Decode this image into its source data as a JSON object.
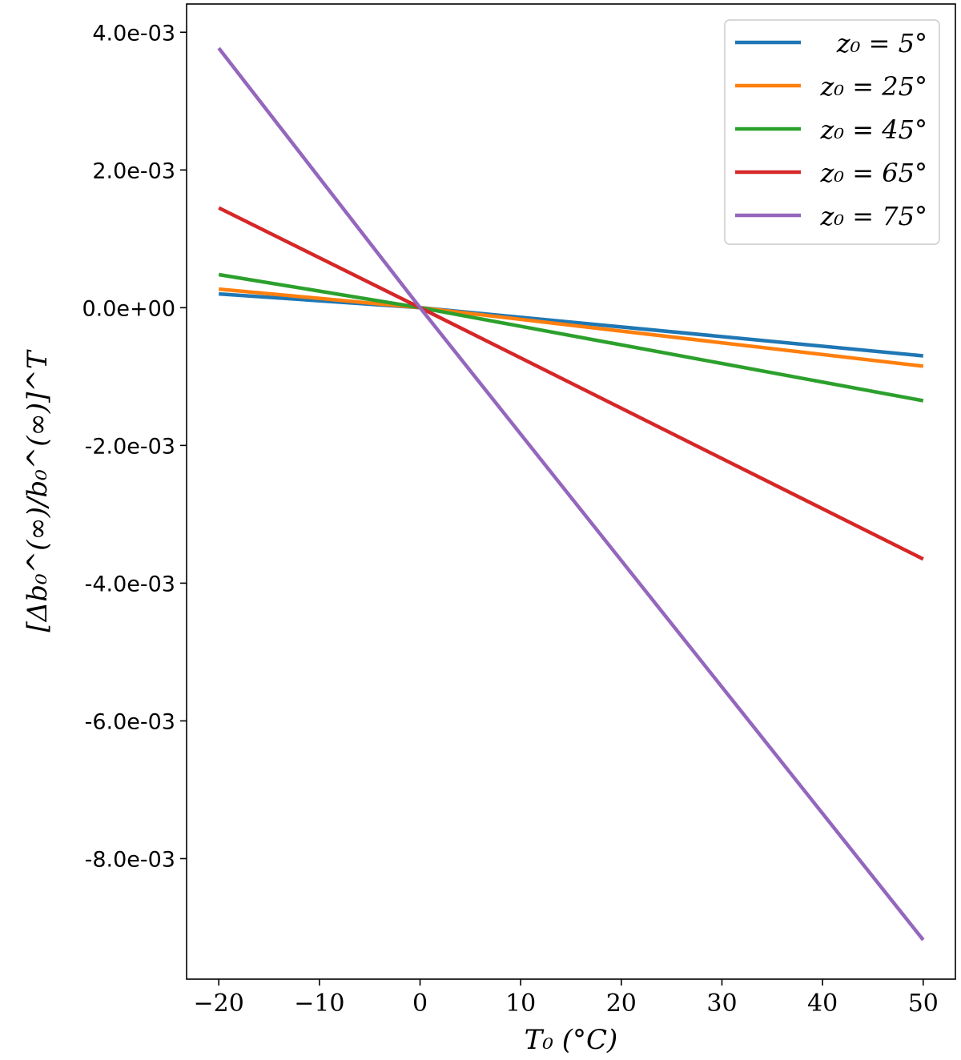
{
  "chart_data": {
    "type": "line",
    "xlabel": "T₀ (°C)",
    "ylabel": "[Δb₀^(∞)/b₀^(∞)]^T",
    "xlim": [
      -23.2,
      53.2
    ],
    "ylim": [
      -0.00975,
      0.00441
    ],
    "x_ticks": [
      -20,
      -10,
      0,
      10,
      20,
      30,
      40,
      50
    ],
    "x_tick_labels": [
      "−20",
      "−10",
      "0",
      "10",
      "20",
      "30",
      "40",
      "50"
    ],
    "y_ticks": [
      0.004,
      0.002,
      0.0,
      -0.002,
      -0.004,
      -0.006,
      -0.008
    ],
    "y_tick_labels": [
      "4.0e-03",
      "2.0e-03",
      "0.0e+00",
      "-2.0e-03",
      "-4.0e-03",
      "-6.0e-03",
      "-8.0e-03"
    ],
    "legend_position": "top-right",
    "grid": false,
    "series": [
      {
        "name": "z₀ = 5°",
        "color": "#1f77b4",
        "x": [
          -20,
          0,
          50
        ],
        "y": [
          0.0002,
          0.0,
          -0.0007
        ]
      },
      {
        "name": "z₀ = 25°",
        "color": "#ff7f0e",
        "x": [
          -20,
          0,
          50
        ],
        "y": [
          0.00027,
          0.0,
          -0.00085
        ]
      },
      {
        "name": "z₀ = 45°",
        "color": "#2ca02c",
        "x": [
          -20,
          0,
          50
        ],
        "y": [
          0.00048,
          0.0,
          -0.00135
        ]
      },
      {
        "name": "z₀ = 65°",
        "color": "#d62728",
        "x": [
          -20,
          0,
          50
        ],
        "y": [
          0.00145,
          0.0,
          -0.00365
        ]
      },
      {
        "name": "z₀ = 75°",
        "color": "#9467bd",
        "x": [
          -20,
          0,
          50
        ],
        "y": [
          0.00377,
          0.0,
          -0.00918
        ]
      }
    ]
  }
}
